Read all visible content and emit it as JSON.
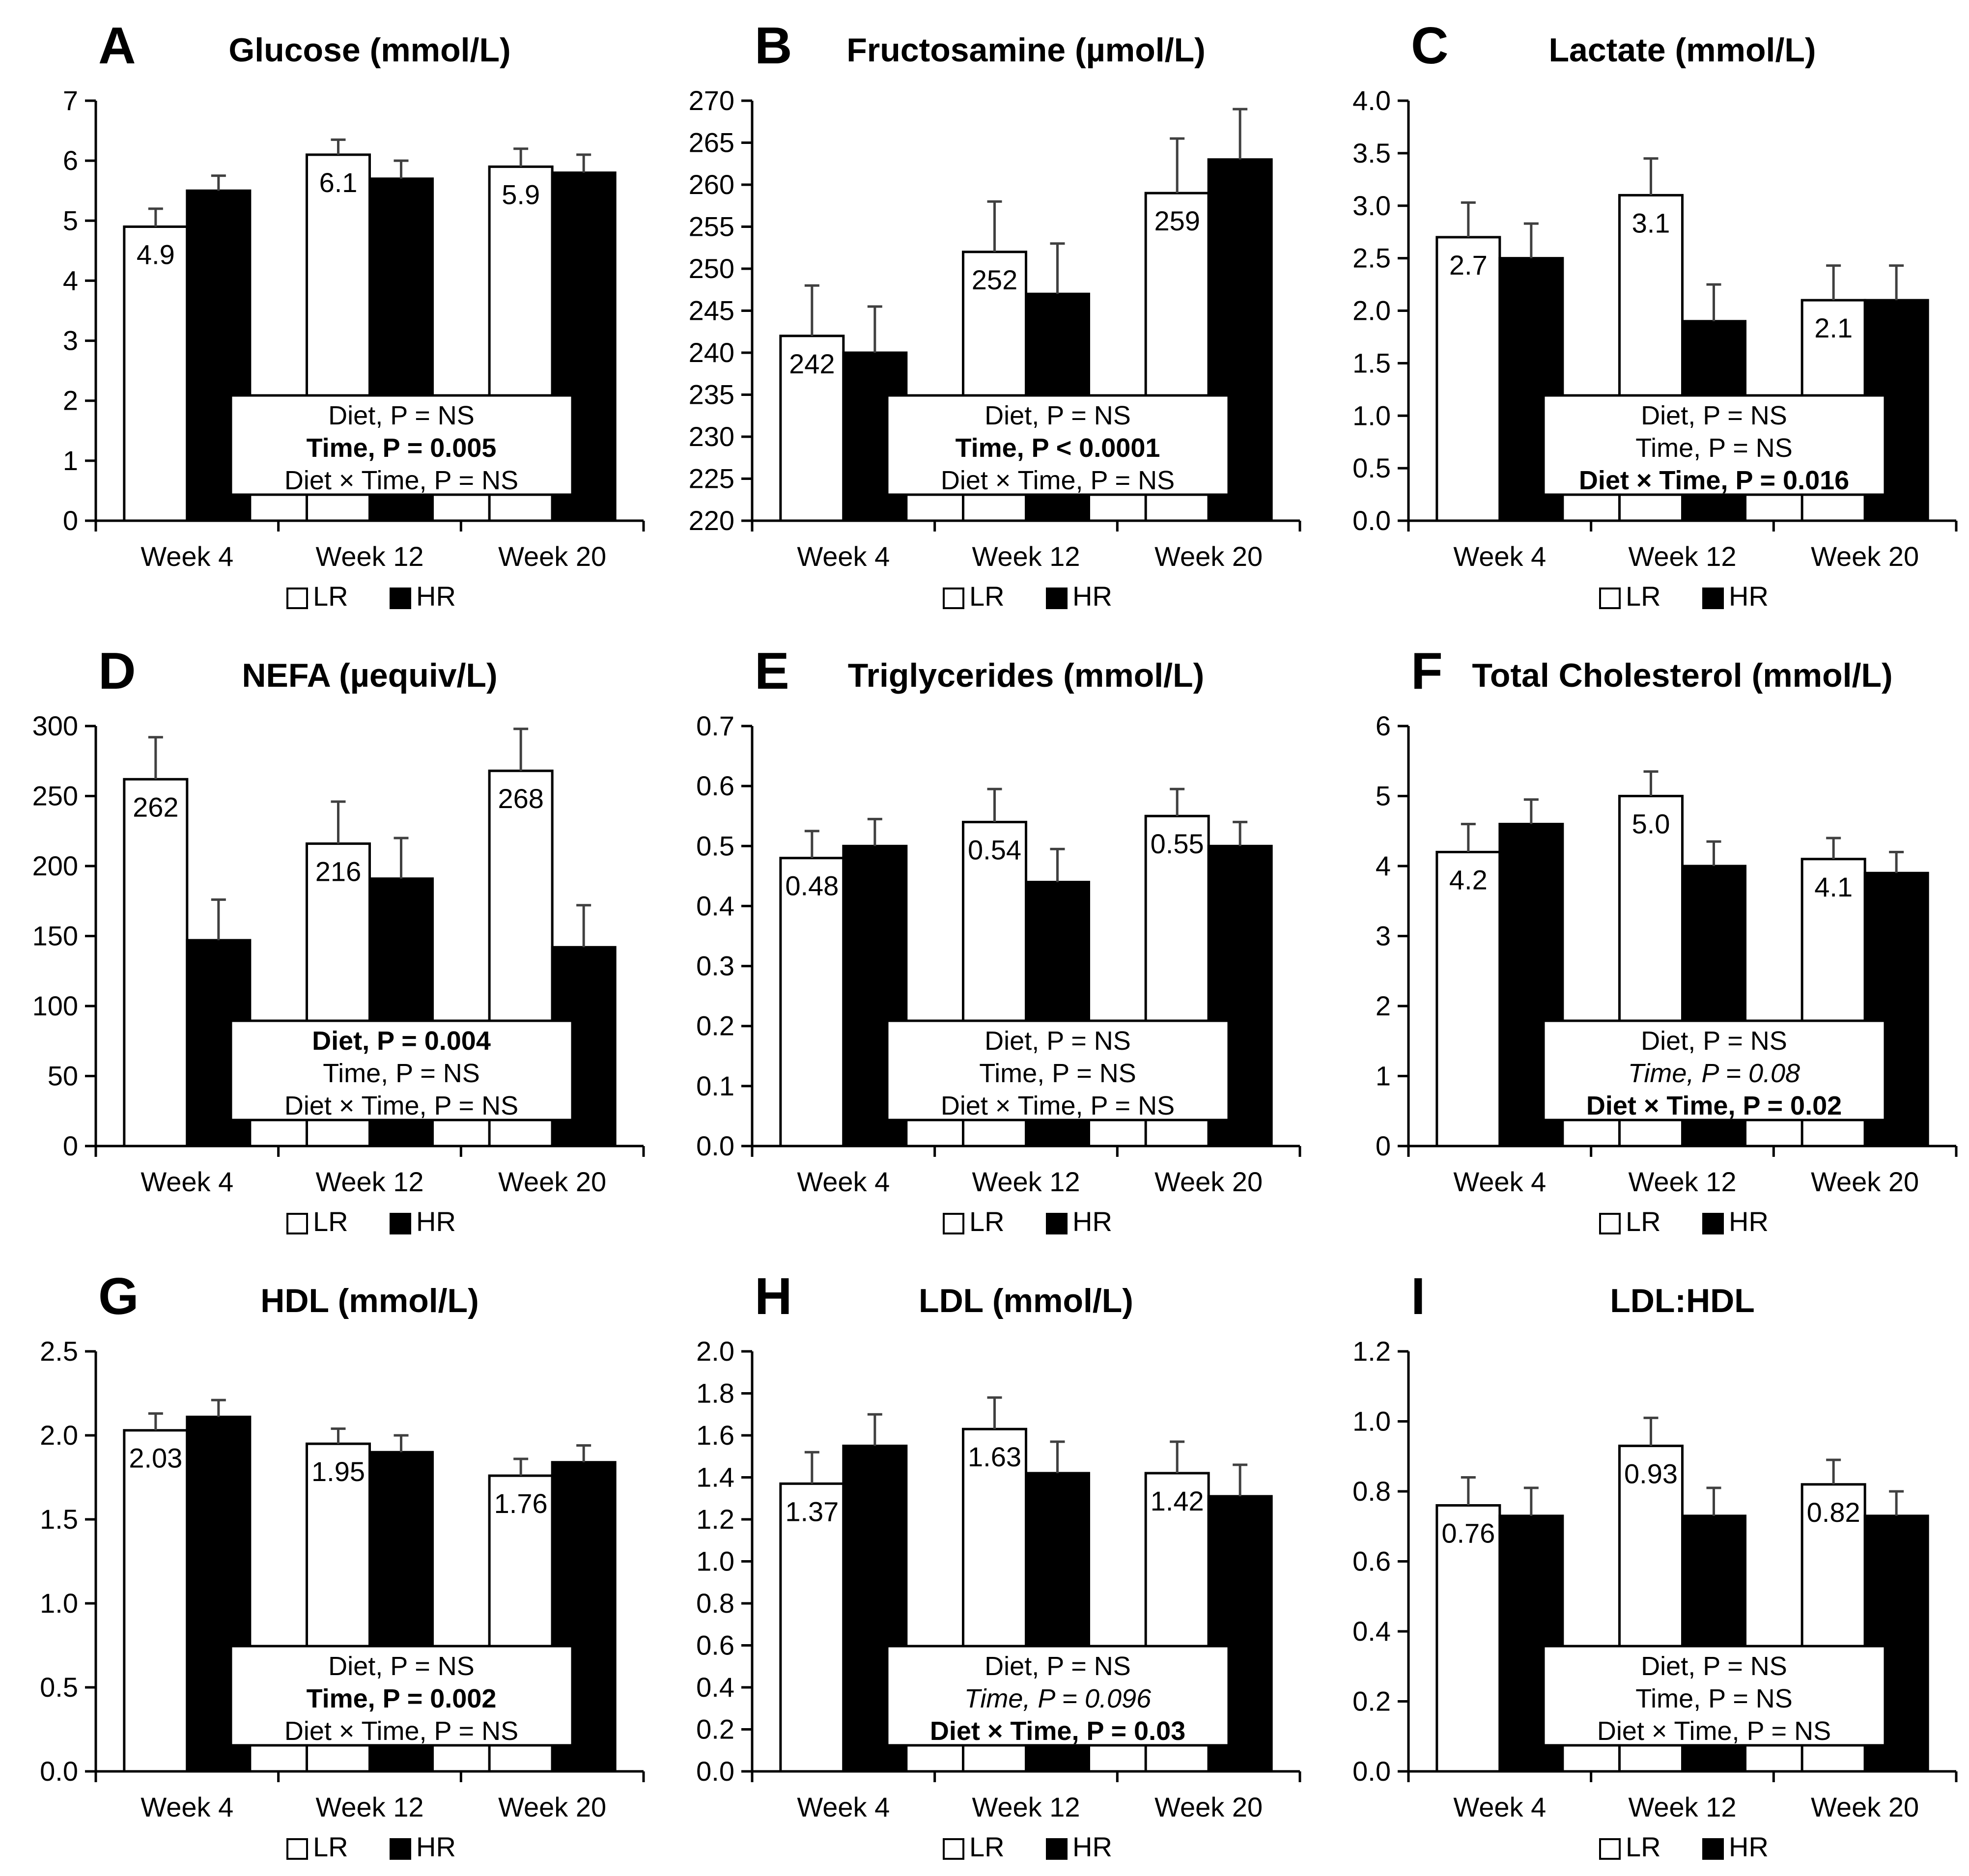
{
  "figure": {
    "background": "#ffffff",
    "bar_outline_color": "#000000",
    "error_bar_color": "#404040"
  },
  "chart_data": [
    {
      "type": "bar",
      "panel_letter": "A",
      "title": "Glucose (mmol/L)",
      "categories": [
        "Week 4",
        "Week 12",
        "Week 20"
      ],
      "ylim": [
        0,
        7
      ],
      "ytick_step": 1,
      "ytick_decimals": 0,
      "series": [
        {
          "name": "LR",
          "fill": "#ffffff",
          "label_color": "#000000",
          "values": [
            4.9,
            6.1,
            5.9
          ],
          "value_labels": [
            "4.9",
            "6.1",
            "5.9"
          ],
          "errors": [
            0.3,
            0.25,
            0.3
          ]
        },
        {
          "name": "HR",
          "fill": "#000000",
          "label_color": "#ffffff",
          "values": [
            5.5,
            5.7,
            5.8
          ],
          "value_labels": [
            "5.5",
            "5.7",
            "5.8"
          ],
          "errors": [
            0.25,
            0.3,
            0.3
          ]
        }
      ],
      "stats_box": [
        {
          "text": "Diet, P = NS",
          "style": "normal"
        },
        {
          "text": "Time, P = 0.005",
          "style": "bold"
        },
        {
          "text": "Diet × Time, P = NS",
          "style": "normal"
        }
      ]
    },
    {
      "type": "bar",
      "panel_letter": "B",
      "title": "Fructosamine (µmol/L)",
      "categories": [
        "Week 4",
        "Week 12",
        "Week 20"
      ],
      "ylim": [
        220,
        270
      ],
      "ytick_step": 5,
      "ytick_decimals": 0,
      "series": [
        {
          "name": "LR",
          "fill": "#ffffff",
          "label_color": "#000000",
          "values": [
            242,
            252,
            259
          ],
          "value_labels": [
            "242",
            "252",
            "259"
          ],
          "errors": [
            6,
            6,
            6.5
          ]
        },
        {
          "name": "HR",
          "fill": "#000000",
          "label_color": "#ffffff",
          "values": [
            240,
            247,
            263
          ],
          "value_labels": [
            "240",
            "247",
            "263"
          ],
          "errors": [
            5.5,
            6,
            6
          ]
        }
      ],
      "stats_box": [
        {
          "text": "Diet, P = NS",
          "style": "normal"
        },
        {
          "text": "Time, P < 0.0001",
          "style": "bold"
        },
        {
          "text": "Diet × Time, P = NS",
          "style": "normal"
        }
      ]
    },
    {
      "type": "bar",
      "panel_letter": "C",
      "title": "Lactate (mmol/L)",
      "categories": [
        "Week 4",
        "Week 12",
        "Week 20"
      ],
      "ylim": [
        0,
        4
      ],
      "ytick_step": 0.5,
      "ytick_decimals": 1,
      "series": [
        {
          "name": "LR",
          "fill": "#ffffff",
          "label_color": "#000000",
          "values": [
            2.7,
            3.1,
            2.1
          ],
          "value_labels": [
            "2.7",
            "3.1",
            "2.1"
          ],
          "errors": [
            0.33,
            0.35,
            0.33
          ]
        },
        {
          "name": "HR",
          "fill": "#000000",
          "label_color": "#ffffff",
          "values": [
            2.5,
            1.9,
            2.1
          ],
          "value_labels": [
            "2.5",
            "1.9",
            "2.1"
          ],
          "errors": [
            0.33,
            0.35,
            0.33
          ]
        }
      ],
      "stats_box": [
        {
          "text": "Diet, P = NS",
          "style": "normal"
        },
        {
          "text": "Time, P = NS",
          "style": "normal"
        },
        {
          "text": "Diet × Time, P = 0.016",
          "style": "bold"
        }
      ]
    },
    {
      "type": "bar",
      "panel_letter": "D",
      "title": "NEFA (µequiv/L)",
      "categories": [
        "Week 4",
        "Week 12",
        "Week 20"
      ],
      "ylim": [
        0,
        300
      ],
      "ytick_step": 50,
      "ytick_decimals": 0,
      "series": [
        {
          "name": "LR",
          "fill": "#ffffff",
          "label_color": "#000000",
          "values": [
            262,
            216,
            268
          ],
          "value_labels": [
            "262",
            "216",
            "268"
          ],
          "errors": [
            30,
            30,
            30
          ]
        },
        {
          "name": "HR",
          "fill": "#000000",
          "label_color": "#ffffff",
          "values": [
            147,
            191,
            142
          ],
          "value_labels": [
            "147",
            "191",
            "142"
          ],
          "errors": [
            29,
            29,
            30
          ]
        }
      ],
      "stats_box": [
        {
          "text": "Diet, P = 0.004",
          "style": "bold"
        },
        {
          "text": "Time, P = NS",
          "style": "normal"
        },
        {
          "text": "Diet × Time, P = NS",
          "style": "normal"
        }
      ]
    },
    {
      "type": "bar",
      "panel_letter": "E",
      "title": "Triglycerides (mmol/L)",
      "categories": [
        "Week 4",
        "Week 12",
        "Week 20"
      ],
      "ylim": [
        0,
        0.7
      ],
      "ytick_step": 0.1,
      "ytick_decimals": 1,
      "series": [
        {
          "name": "LR",
          "fill": "#ffffff",
          "label_color": "#000000",
          "values": [
            0.48,
            0.54,
            0.55
          ],
          "value_labels": [
            "0.48",
            "0.54",
            "0.55"
          ],
          "errors": [
            0.045,
            0.055,
            0.045
          ]
        },
        {
          "name": "HR",
          "fill": "#000000",
          "label_color": "#ffffff",
          "values": [
            0.5,
            0.44,
            0.5
          ],
          "value_labels": [
            "0.50",
            "0.44",
            "0.50"
          ],
          "errors": [
            0.045,
            0.055,
            0.04
          ]
        }
      ],
      "stats_box": [
        {
          "text": "Diet, P = NS",
          "style": "normal"
        },
        {
          "text": "Time, P = NS",
          "style": "normal"
        },
        {
          "text": "Diet × Time, P = NS",
          "style": "normal"
        }
      ]
    },
    {
      "type": "bar",
      "panel_letter": "F",
      "title": "Total Cholesterol (mmol/L)",
      "categories": [
        "Week 4",
        "Week 12",
        "Week 20"
      ],
      "ylim": [
        0,
        6
      ],
      "ytick_step": 1,
      "ytick_decimals": 0,
      "series": [
        {
          "name": "LR",
          "fill": "#ffffff",
          "label_color": "#000000",
          "values": [
            4.2,
            5.0,
            4.1
          ],
          "value_labels": [
            "4.2",
            "5.0",
            "4.1"
          ],
          "errors": [
            0.4,
            0.35,
            0.3
          ]
        },
        {
          "name": "HR",
          "fill": "#000000",
          "label_color": "#ffffff",
          "values": [
            4.6,
            4.0,
            3.9
          ],
          "value_labels": [
            "4.6",
            "4.0",
            "3.9"
          ],
          "errors": [
            0.35,
            0.35,
            0.3
          ]
        }
      ],
      "stats_box": [
        {
          "text": "Diet, P = NS",
          "style": "normal"
        },
        {
          "text": "Time, P = 0.08",
          "style": "italic"
        },
        {
          "text": "Diet × Time, P = 0.02",
          "style": "bold"
        }
      ]
    },
    {
      "type": "bar",
      "panel_letter": "G",
      "title": "HDL (mmol/L)",
      "categories": [
        "Week 4",
        "Week 12",
        "Week 20"
      ],
      "ylim": [
        0,
        2.5
      ],
      "ytick_step": 0.5,
      "ytick_decimals": 1,
      "series": [
        {
          "name": "LR",
          "fill": "#ffffff",
          "label_color": "#000000",
          "values": [
            2.03,
            1.95,
            1.76
          ],
          "value_labels": [
            "2.03",
            "1.95",
            "1.76"
          ],
          "errors": [
            0.1,
            0.09,
            0.1
          ]
        },
        {
          "name": "HR",
          "fill": "#000000",
          "label_color": "#ffffff",
          "values": [
            2.11,
            1.9,
            1.84
          ],
          "value_labels": [
            "2.11",
            "1.90",
            "1.84"
          ],
          "errors": [
            0.1,
            0.1,
            0.1
          ]
        }
      ],
      "stats_box": [
        {
          "text": "Diet, P = NS",
          "style": "normal"
        },
        {
          "text": "Time, P = 0.002",
          "style": "bold"
        },
        {
          "text": "Diet × Time, P = NS",
          "style": "normal"
        }
      ]
    },
    {
      "type": "bar",
      "panel_letter": "H",
      "title": "LDL (mmol/L)",
      "categories": [
        "Week 4",
        "Week 12",
        "Week 20"
      ],
      "ylim": [
        0,
        2
      ],
      "ytick_step": 0.2,
      "ytick_decimals": 1,
      "series": [
        {
          "name": "LR",
          "fill": "#ffffff",
          "label_color": "#000000",
          "values": [
            1.37,
            1.63,
            1.42
          ],
          "value_labels": [
            "1.37",
            "1.63",
            "1.42"
          ],
          "errors": [
            0.15,
            0.15,
            0.15
          ]
        },
        {
          "name": "HR",
          "fill": "#000000",
          "label_color": "#ffffff",
          "values": [
            1.55,
            1.42,
            1.31
          ],
          "value_labels": [
            "1.55",
            "1.42",
            "1.31"
          ],
          "errors": [
            0.15,
            0.15,
            0.15
          ]
        }
      ],
      "stats_box": [
        {
          "text": "Diet, P = NS",
          "style": "normal"
        },
        {
          "text": "Time, P = 0.096",
          "style": "italic"
        },
        {
          "text": "Diet × Time, P = 0.03",
          "style": "bold"
        }
      ]
    },
    {
      "type": "bar",
      "panel_letter": "I",
      "title": "LDL:HDL",
      "categories": [
        "Week 4",
        "Week 12",
        "Week 20"
      ],
      "ylim": [
        0,
        1.2
      ],
      "ytick_step": 0.2,
      "ytick_decimals": 1,
      "series": [
        {
          "name": "LR",
          "fill": "#ffffff",
          "label_color": "#000000",
          "values": [
            0.76,
            0.93,
            0.82
          ],
          "value_labels": [
            "0.76",
            "0.93",
            "0.82"
          ],
          "errors": [
            0.08,
            0.08,
            0.07
          ]
        },
        {
          "name": "HR",
          "fill": "#000000",
          "label_color": "#ffffff",
          "values": [
            0.73,
            0.73,
            0.73
          ],
          "value_labels": [
            "0.73",
            "0.73",
            "0.73"
          ],
          "errors": [
            0.08,
            0.08,
            0.07
          ]
        }
      ],
      "stats_box": [
        {
          "text": "Diet, P = NS",
          "style": "normal"
        },
        {
          "text": "Time, P = NS",
          "style": "normal"
        },
        {
          "text": "Diet × Time, P = NS",
          "style": "normal"
        }
      ]
    }
  ]
}
